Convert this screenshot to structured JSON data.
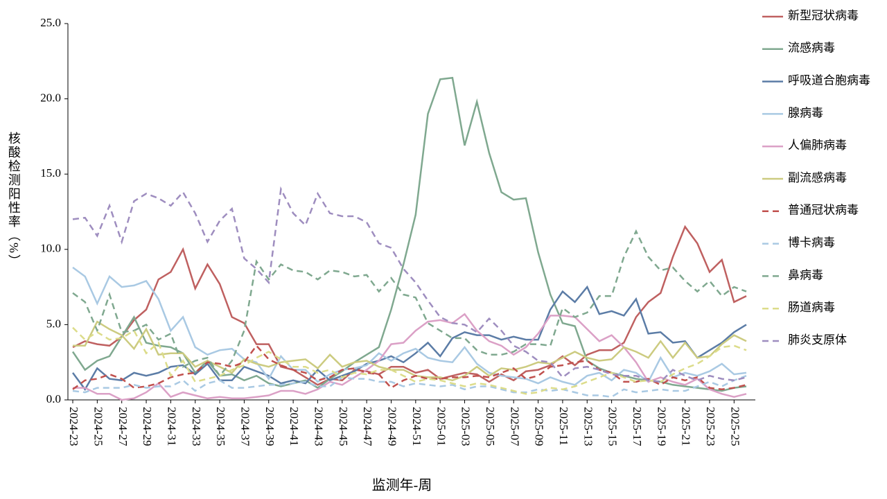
{
  "chart_data": {
    "type": "line",
    "y_label": "核酸检测阳性率（%）",
    "x_label": "监测年-周",
    "ylim": [
      0,
      25
    ],
    "yticks": [
      {
        "value": 0,
        "label": "0.0"
      },
      {
        "value": 5,
        "label": "5.0"
      },
      {
        "value": 10,
        "label": "10.0"
      },
      {
        "value": 15,
        "label": "15.0"
      },
      {
        "value": 20,
        "label": "20.0"
      },
      {
        "value": 25,
        "label": "25.0"
      }
    ],
    "categories": [
      "2024-23",
      null,
      "2024-25",
      null,
      "2024-27",
      null,
      "2024-29",
      null,
      "2024-31",
      null,
      "2024-33",
      null,
      "2024-35",
      null,
      "2024-37",
      null,
      "2024-39",
      null,
      "2024-41",
      null,
      "2024-43",
      null,
      "2024-45",
      null,
      "2024-47",
      null,
      "2024-49",
      null,
      "2024-51",
      null,
      "2025-01",
      null,
      "2025-03",
      null,
      "2025-05",
      null,
      "2025-07",
      null,
      "2025-09",
      null,
      "2025-11",
      null,
      "2025-13",
      null,
      "2025-15",
      null,
      "2025-17",
      null,
      "2025-19",
      null,
      "2025-21",
      null,
      "2025-23",
      null,
      "2025-25",
      null
    ],
    "legend": "right",
    "series": [
      {
        "name": "新型冠状病毒",
        "color": "#bf6060",
        "dashed": false,
        "values": [
          3.5,
          3.9,
          3.7,
          3.6,
          4.2,
          5.3,
          6.0,
          8.0,
          8.5,
          10.0,
          7.4,
          9.0,
          7.7,
          5.5,
          5.1,
          3.7,
          3.7,
          2.2,
          2.0,
          1.5,
          1.0,
          1.4,
          1.3,
          2.0,
          1.9,
          1.7,
          2.2,
          2.2,
          1.8,
          2.0,
          1.4,
          1.6,
          1.8,
          1.7,
          1.2,
          1.7,
          1.3,
          1.9,
          2.0,
          2.3,
          2.9,
          2.3,
          3.0,
          3.3,
          3.3,
          3.8,
          5.5,
          6.5,
          7.1,
          9.5,
          11.5,
          10.4,
          8.5,
          9.3,
          6.5,
          6.9
        ]
      },
      {
        "name": "流感病毒",
        "color": "#7fa88f",
        "dashed": false,
        "values": [
          3.2,
          2.0,
          2.6,
          2.9,
          4.2,
          5.5,
          3.8,
          3.6,
          3.5,
          3.1,
          1.8,
          2.6,
          1.6,
          1.7,
          1.3,
          1.6,
          1.1,
          0.9,
          1.1,
          1.3,
          0.8,
          1.4,
          1.9,
          2.5,
          3.0,
          3.5,
          6.0,
          9.0,
          12.3,
          19.0,
          21.3,
          21.4,
          16.9,
          19.8,
          16.4,
          13.8,
          13.3,
          13.4,
          9.8,
          7.0,
          5.1,
          4.9,
          2.6,
          2.1,
          1.8,
          1.6,
          1.4,
          1.3,
          1.2,
          1.0,
          0.9,
          0.8,
          0.7,
          0.6,
          0.8,
          0.9
        ]
      },
      {
        "name": "呼吸道合胞病毒",
        "color": "#5b7ca6",
        "dashed": false,
        "values": [
          1.8,
          0.7,
          2.1,
          1.4,
          1.3,
          1.8,
          1.6,
          1.8,
          2.2,
          2.3,
          1.7,
          2.4,
          1.3,
          1.3,
          2.2,
          1.9,
          1.6,
          1.1,
          1.3,
          1.1,
          2.0,
          1.3,
          1.6,
          1.9,
          2.4,
          2.6,
          2.9,
          2.5,
          3.1,
          3.8,
          2.9,
          4.1,
          4.5,
          4.3,
          4.3,
          4.0,
          4.2,
          4.0,
          4.0,
          6.0,
          7.2,
          6.5,
          7.5,
          5.7,
          5.9,
          5.6,
          6.7,
          4.4,
          4.5,
          3.8,
          3.9,
          2.8,
          3.3,
          3.8,
          4.5,
          5.0
        ]
      },
      {
        "name": "腺病毒",
        "color": "#a9c9e3",
        "dashed": false,
        "values": [
          8.8,
          8.2,
          6.4,
          8.2,
          7.5,
          7.6,
          7.9,
          6.7,
          4.6,
          5.5,
          3.5,
          3.0,
          3.3,
          3.4,
          2.7,
          2.5,
          1.4,
          2.9,
          2.0,
          2.0,
          1.2,
          1.7,
          2.0,
          2.1,
          2.3,
          3.1,
          2.6,
          3.1,
          3.4,
          2.8,
          2.6,
          2.5,
          3.5,
          2.4,
          1.8,
          1.6,
          1.5,
          1.4,
          1.1,
          1.5,
          1.2,
          1.0,
          1.6,
          1.8,
          1.3,
          2.0,
          1.8,
          1.2,
          2.8,
          1.5,
          1.8,
          1.6,
          1.9,
          2.4,
          1.7,
          1.8
        ]
      },
      {
        "name": "人偏肺病毒",
        "color": "#dba0c6",
        "dashed": false,
        "values": [
          0.8,
          0.8,
          0.4,
          0.4,
          0.0,
          0.1,
          0.5,
          1.1,
          0.2,
          0.5,
          0.3,
          0.1,
          0.2,
          0.1,
          0.1,
          0.2,
          0.3,
          0.6,
          0.6,
          0.4,
          0.7,
          1.2,
          1.0,
          1.5,
          2.0,
          2.6,
          3.7,
          3.8,
          4.6,
          5.2,
          5.3,
          5.1,
          5.7,
          4.6,
          3.9,
          3.6,
          3.0,
          3.5,
          4.4,
          5.6,
          5.6,
          5.5,
          4.7,
          3.9,
          4.3,
          3.5,
          2.5,
          1.2,
          1.5,
          1.2,
          1.0,
          1.4,
          0.7,
          0.4,
          0.2,
          0.4
        ]
      },
      {
        "name": "副流感病毒",
        "color": "#cccb80",
        "dashed": false,
        "values": [
          3.6,
          3.6,
          5.2,
          4.7,
          4.3,
          3.4,
          4.7,
          3.0,
          3.1,
          3.1,
          2.2,
          2.6,
          2.2,
          1.8,
          2.7,
          2.4,
          2.2,
          2.5,
          2.6,
          2.7,
          2.1,
          3.0,
          2.2,
          2.5,
          2.6,
          2.2,
          2.0,
          2.0,
          1.6,
          1.5,
          1.5,
          1.3,
          1.6,
          2.2,
          1.6,
          2.1,
          2.0,
          2.2,
          2.5,
          2.4,
          2.8,
          3.2,
          2.8,
          2.6,
          2.7,
          3.5,
          3.2,
          2.8,
          3.9,
          2.8,
          3.8,
          2.8,
          2.9,
          3.7,
          4.3,
          3.9
        ]
      },
      {
        "name": "普通冠状病毒",
        "color": "#c0504d",
        "dashed": true,
        "values": [
          0.7,
          1.3,
          1.4,
          1.7,
          1.4,
          0.8,
          0.9,
          1.1,
          1.5,
          1.7,
          1.8,
          2.5,
          2.4,
          2.2,
          2.5,
          3.6,
          2.7,
          2.3,
          2.0,
          1.8,
          1.3,
          1.5,
          2.0,
          2.1,
          1.8,
          1.7,
          0.8,
          1.3,
          1.6,
          1.4,
          1.4,
          1.5,
          1.5,
          1.6,
          1.5,
          1.8,
          2.1,
          1.4,
          1.6,
          2.2,
          2.3,
          2.5,
          2.6,
          2.0,
          1.8,
          1.2,
          1.2,
          1.4,
          1.0,
          1.5,
          1.3,
          1.5,
          0.8,
          0.7,
          0.8,
          1.0
        ]
      },
      {
        "name": "博卡病毒",
        "color": "#a9c9e3",
        "dashed": true,
        "values": [
          0.6,
          0.5,
          0.8,
          0.8,
          0.8,
          1.0,
          0.8,
          0.9,
          0.9,
          1.3,
          0.6,
          1.1,
          1.3,
          0.8,
          0.8,
          0.9,
          1.0,
          1.0,
          1.1,
          1.2,
          0.9,
          0.9,
          1.5,
          1.4,
          1.4,
          1.2,
          1.2,
          0.9,
          1.1,
          1.0,
          0.9,
          1.0,
          0.7,
          0.9,
          0.9,
          0.7,
          0.5,
          0.5,
          0.7,
          0.6,
          0.7,
          0.5,
          0.3,
          0.3,
          0.2,
          0.7,
          0.5,
          0.6,
          0.7,
          0.6,
          0.6,
          0.9,
          1.2,
          0.9,
          1.3,
          1.6
        ]
      },
      {
        "name": "鼻病毒",
        "color": "#7fa88f",
        "dashed": true,
        "values": [
          7.1,
          6.5,
          4.6,
          7.0,
          4.5,
          4.6,
          5.0,
          4.0,
          4.4,
          2.2,
          2.6,
          2.8,
          1.6,
          2.6,
          4.6,
          9.2,
          8.0,
          9.0,
          8.6,
          8.5,
          8.0,
          8.6,
          8.5,
          8.2,
          8.3,
          7.2,
          8.1,
          7.0,
          6.8,
          5.1,
          4.6,
          4.1,
          4.1,
          3.3,
          3.0,
          3.0,
          3.2,
          3.7,
          3.7,
          3.6,
          6.1,
          5.5,
          5.8,
          6.9,
          6.9,
          9.5,
          11.2,
          9.5,
          8.6,
          8.8,
          7.9,
          7.2,
          7.9,
          6.9,
          7.5,
          7.2
        ]
      },
      {
        "name": "肠道病毒",
        "color": "#dcdc8a",
        "dashed": true,
        "values": [
          4.8,
          4.0,
          4.5,
          4.0,
          4.1,
          4.6,
          3.1,
          3.8,
          1.6,
          2.6,
          1.2,
          1.4,
          1.6,
          2.0,
          2.3,
          2.8,
          3.2,
          2.7,
          2.2,
          2.2,
          1.8,
          2.0,
          1.5,
          1.8,
          1.7,
          2.0,
          2.0,
          1.6,
          1.2,
          1.4,
          1.3,
          1.1,
          0.9,
          1.1,
          1.0,
          0.8,
          0.6,
          0.4,
          0.5,
          0.8,
          0.7,
          0.9,
          1.2,
          1.5,
          1.8,
          1.5,
          1.2,
          1.3,
          1.2,
          1.7,
          2.1,
          2.4,
          2.9,
          3.5,
          3.6,
          3.3
        ]
      },
      {
        "name": "肺炎支原体",
        "color": "#9e8dbf",
        "dashed": true,
        "values": [
          12.0,
          12.1,
          10.9,
          12.9,
          10.5,
          13.2,
          13.7,
          13.4,
          12.9,
          13.8,
          12.4,
          10.5,
          11.9,
          12.7,
          9.4,
          8.7,
          7.8,
          14.0,
          12.4,
          11.6,
          13.7,
          12.4,
          12.2,
          12.2,
          11.8,
          10.4,
          10.1,
          8.7,
          7.8,
          6.6,
          5.5,
          5.1,
          5.0,
          4.5,
          5.4,
          4.6,
          3.6,
          3.2,
          2.6,
          2.5,
          1.5,
          2.1,
          2.2,
          2.0,
          1.7,
          1.6,
          1.6,
          1.3,
          1.2,
          2.0,
          1.6,
          1.3,
          1.6,
          1.4,
          1.3,
          1.5
        ]
      }
    ]
  }
}
